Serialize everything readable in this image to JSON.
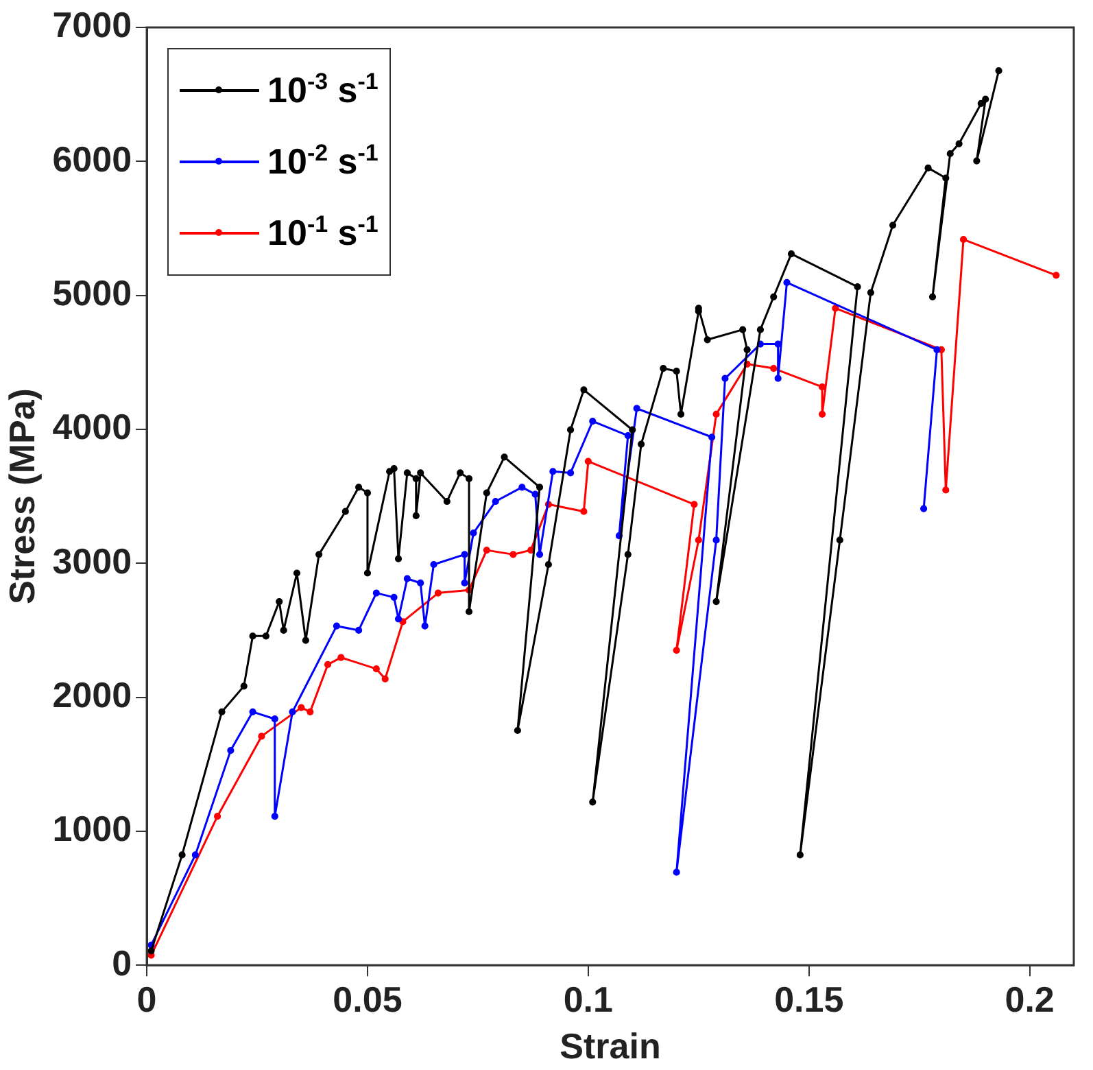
{
  "chart_data": {
    "type": "line",
    "xlabel": "Strain",
    "ylabel": "Stress (MPa)",
    "xlim": [
      0,
      0.21
    ],
    "ylim": [
      0,
      7000
    ],
    "xticks": [
      0,
      0.05,
      0.1,
      0.15,
      0.2
    ],
    "yticks": [
      0,
      1000,
      2000,
      3000,
      4000,
      5000,
      6000,
      7000
    ],
    "legend": "top left",
    "marker": "circle",
    "line_style": "solid",
    "grid": false,
    "series": [
      {
        "name": "10$^{-3}$ s$^{-1}$",
        "color": "#000000",
        "x": [
          0.001,
          0.008,
          0.017,
          0.022,
          0.024,
          0.027,
          0.03,
          0.031,
          0.034,
          0.036,
          0.039,
          0.045,
          0.048,
          0.05,
          0.05,
          0.055,
          0.056,
          0.057,
          0.059,
          0.061,
          0.061,
          0.062,
          0.068,
          0.071,
          0.073,
          0.073,
          0.077,
          0.081,
          0.089,
          0.084,
          0.091,
          0.096,
          0.099,
          0.11,
          0.101,
          0.109,
          0.112,
          0.117,
          0.12,
          0.121,
          0.125,
          0.125,
          0.127,
          0.135,
          0.136,
          0.129,
          0.139,
          0.142,
          0.146,
          0.161,
          0.148,
          0.157,
          0.164,
          0.169,
          0.177,
          0.181,
          0.178,
          0.182,
          0.184,
          0.189,
          0.19,
          0.188,
          0.193
        ],
        "values": [
          107,
          823,
          1891,
          2083,
          2457,
          2457,
          2714,
          2500,
          2927,
          2425,
          3066,
          3387,
          3568,
          3526,
          2927,
          3686,
          3707,
          3034,
          3675,
          3632,
          3355,
          3675,
          3462,
          3675,
          3632,
          2639,
          3526,
          3793,
          3568,
          1752,
          2991,
          3996,
          4295,
          3996,
          1218,
          3066,
          3889,
          4455,
          4434,
          4113,
          4882,
          4904,
          4669,
          4744,
          4594,
          2714,
          4744,
          4989,
          5310,
          5064,
          823,
          3173,
          5021,
          5524,
          5951,
          5876,
          4989,
          6058,
          6132,
          6432,
          6464,
          6004,
          6677
        ]
      },
      {
        "name": "10$^{-2}$ s$^{-1}$",
        "color": "#0000ff",
        "x": [
          0.001,
          0.011,
          0.019,
          0.024,
          0.029,
          0.029,
          0.033,
          0.043,
          0.048,
          0.052,
          0.056,
          0.057,
          0.059,
          0.062,
          0.063,
          0.065,
          0.072,
          0.072,
          0.074,
          0.079,
          0.085,
          0.088,
          0.089,
          0.092,
          0.096,
          0.101,
          0.109,
          0.107,
          0.111,
          0.128,
          0.12,
          0.129,
          0.131,
          0.139,
          0.143,
          0.143,
          0.145,
          0.179,
          0.176
        ],
        "values": [
          150,
          823,
          1603,
          1891,
          1838,
          1111,
          1891,
          2532,
          2500,
          2778,
          2746,
          2585,
          2885,
          2853,
          2532,
          2991,
          3066,
          2853,
          3226,
          3462,
          3568,
          3515,
          3066,
          3686,
          3675,
          4060,
          3953,
          3205,
          4156,
          3942,
          694,
          3173,
          4380,
          4637,
          4637,
          4380,
          5096,
          4594,
          3408
        ]
      },
      {
        "name": "10$^{-1}$ s$^{-1}$",
        "color": "#ff0000",
        "x": [
          0.001,
          0.016,
          0.026,
          0.035,
          0.037,
          0.041,
          0.044,
          0.052,
          0.054,
          0.058,
          0.066,
          0.073,
          0.077,
          0.083,
          0.087,
          0.091,
          0.099,
          0.1,
          0.124,
          0.12,
          0.125,
          0.129,
          0.136,
          0.142,
          0.153,
          0.153,
          0.156,
          0.18,
          0.181,
          0.185,
          0.206
        ],
        "values": [
          75,
          1111,
          1709,
          1923,
          1891,
          2244,
          2297,
          2212,
          2137,
          2564,
          2778,
          2800,
          3098,
          3066,
          3098,
          3440,
          3387,
          3761,
          3440,
          2350,
          3173,
          4113,
          4487,
          4455,
          4316,
          4113,
          4904,
          4594,
          3547,
          5417,
          5150
        ]
      }
    ]
  }
}
